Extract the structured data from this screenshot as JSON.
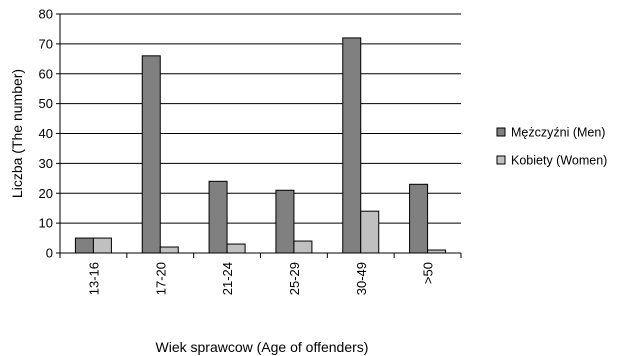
{
  "chart_data": {
    "type": "bar",
    "xlabel": "Wiek sprawcow (Age of offenders)",
    "ylabel": "Liczba (The number)",
    "ylim": [
      0,
      80
    ],
    "yticks": [
      0,
      10,
      20,
      30,
      40,
      50,
      60,
      70,
      80
    ],
    "grid": true,
    "legend_position": "right",
    "categories": [
      "13-16",
      "17-20",
      "21-24",
      "25-29",
      "30-49",
      ">50"
    ],
    "series": [
      {
        "name": "Mężczyźni (Men)",
        "color": "#808080",
        "values": [
          5,
          66,
          24,
          21,
          72,
          23
        ]
      },
      {
        "name": "Kobiety (Women)",
        "color": "#c0c0c0",
        "values": [
          5,
          2,
          3,
          4,
          14,
          1
        ]
      }
    ]
  }
}
